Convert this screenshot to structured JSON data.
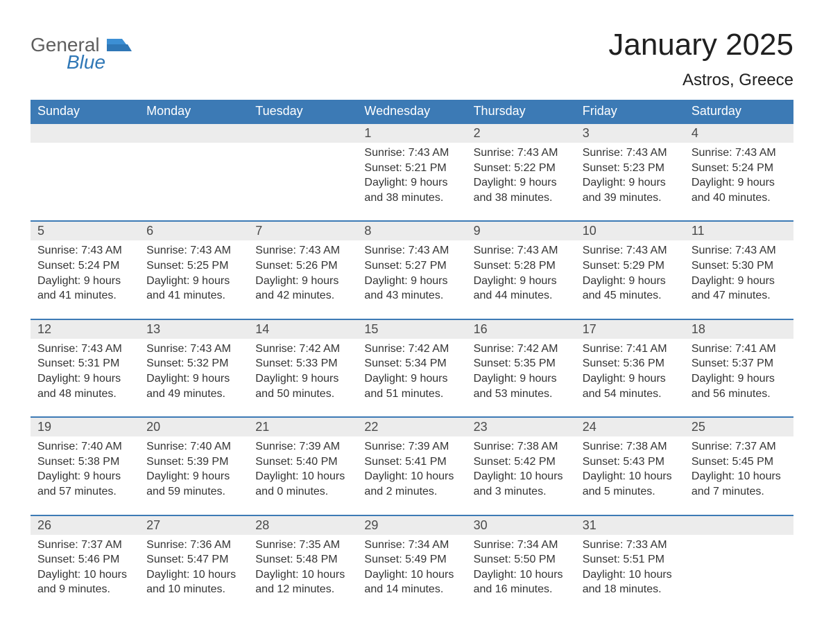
{
  "logo": {
    "general": "General",
    "blue": "Blue"
  },
  "title": "January 2025",
  "location": "Astros, Greece",
  "colors": {
    "header_bg": "#3c7ab5",
    "header_text": "#ffffff",
    "daynum_bg": "#ececec",
    "daynum_text": "#4a4a4a",
    "body_text": "#333333",
    "row_border": "#3c7ab5",
    "logo_gray": "#5e5e5e",
    "logo_blue": "#2f77b6",
    "page_bg": "#ffffff"
  },
  "day_names": [
    "Sunday",
    "Monday",
    "Tuesday",
    "Wednesday",
    "Thursday",
    "Friday",
    "Saturday"
  ],
  "weeks": [
    [
      {
        "num": "",
        "sunrise": "",
        "sunset": "",
        "daylight": ""
      },
      {
        "num": "",
        "sunrise": "",
        "sunset": "",
        "daylight": ""
      },
      {
        "num": "",
        "sunrise": "",
        "sunset": "",
        "daylight": ""
      },
      {
        "num": "1",
        "sunrise": "Sunrise: 7:43 AM",
        "sunset": "Sunset: 5:21 PM",
        "daylight": "Daylight: 9 hours and 38 minutes."
      },
      {
        "num": "2",
        "sunrise": "Sunrise: 7:43 AM",
        "sunset": "Sunset: 5:22 PM",
        "daylight": "Daylight: 9 hours and 38 minutes."
      },
      {
        "num": "3",
        "sunrise": "Sunrise: 7:43 AM",
        "sunset": "Sunset: 5:23 PM",
        "daylight": "Daylight: 9 hours and 39 minutes."
      },
      {
        "num": "4",
        "sunrise": "Sunrise: 7:43 AM",
        "sunset": "Sunset: 5:24 PM",
        "daylight": "Daylight: 9 hours and 40 minutes."
      }
    ],
    [
      {
        "num": "5",
        "sunrise": "Sunrise: 7:43 AM",
        "sunset": "Sunset: 5:24 PM",
        "daylight": "Daylight: 9 hours and 41 minutes."
      },
      {
        "num": "6",
        "sunrise": "Sunrise: 7:43 AM",
        "sunset": "Sunset: 5:25 PM",
        "daylight": "Daylight: 9 hours and 41 minutes."
      },
      {
        "num": "7",
        "sunrise": "Sunrise: 7:43 AM",
        "sunset": "Sunset: 5:26 PM",
        "daylight": "Daylight: 9 hours and 42 minutes."
      },
      {
        "num": "8",
        "sunrise": "Sunrise: 7:43 AM",
        "sunset": "Sunset: 5:27 PM",
        "daylight": "Daylight: 9 hours and 43 minutes."
      },
      {
        "num": "9",
        "sunrise": "Sunrise: 7:43 AM",
        "sunset": "Sunset: 5:28 PM",
        "daylight": "Daylight: 9 hours and 44 minutes."
      },
      {
        "num": "10",
        "sunrise": "Sunrise: 7:43 AM",
        "sunset": "Sunset: 5:29 PM",
        "daylight": "Daylight: 9 hours and 45 minutes."
      },
      {
        "num": "11",
        "sunrise": "Sunrise: 7:43 AM",
        "sunset": "Sunset: 5:30 PM",
        "daylight": "Daylight: 9 hours and 47 minutes."
      }
    ],
    [
      {
        "num": "12",
        "sunrise": "Sunrise: 7:43 AM",
        "sunset": "Sunset: 5:31 PM",
        "daylight": "Daylight: 9 hours and 48 minutes."
      },
      {
        "num": "13",
        "sunrise": "Sunrise: 7:43 AM",
        "sunset": "Sunset: 5:32 PM",
        "daylight": "Daylight: 9 hours and 49 minutes."
      },
      {
        "num": "14",
        "sunrise": "Sunrise: 7:42 AM",
        "sunset": "Sunset: 5:33 PM",
        "daylight": "Daylight: 9 hours and 50 minutes."
      },
      {
        "num": "15",
        "sunrise": "Sunrise: 7:42 AM",
        "sunset": "Sunset: 5:34 PM",
        "daylight": "Daylight: 9 hours and 51 minutes."
      },
      {
        "num": "16",
        "sunrise": "Sunrise: 7:42 AM",
        "sunset": "Sunset: 5:35 PM",
        "daylight": "Daylight: 9 hours and 53 minutes."
      },
      {
        "num": "17",
        "sunrise": "Sunrise: 7:41 AM",
        "sunset": "Sunset: 5:36 PM",
        "daylight": "Daylight: 9 hours and 54 minutes."
      },
      {
        "num": "18",
        "sunrise": "Sunrise: 7:41 AM",
        "sunset": "Sunset: 5:37 PM",
        "daylight": "Daylight: 9 hours and 56 minutes."
      }
    ],
    [
      {
        "num": "19",
        "sunrise": "Sunrise: 7:40 AM",
        "sunset": "Sunset: 5:38 PM",
        "daylight": "Daylight: 9 hours and 57 minutes."
      },
      {
        "num": "20",
        "sunrise": "Sunrise: 7:40 AM",
        "sunset": "Sunset: 5:39 PM",
        "daylight": "Daylight: 9 hours and 59 minutes."
      },
      {
        "num": "21",
        "sunrise": "Sunrise: 7:39 AM",
        "sunset": "Sunset: 5:40 PM",
        "daylight": "Daylight: 10 hours and 0 minutes."
      },
      {
        "num": "22",
        "sunrise": "Sunrise: 7:39 AM",
        "sunset": "Sunset: 5:41 PM",
        "daylight": "Daylight: 10 hours and 2 minutes."
      },
      {
        "num": "23",
        "sunrise": "Sunrise: 7:38 AM",
        "sunset": "Sunset: 5:42 PM",
        "daylight": "Daylight: 10 hours and 3 minutes."
      },
      {
        "num": "24",
        "sunrise": "Sunrise: 7:38 AM",
        "sunset": "Sunset: 5:43 PM",
        "daylight": "Daylight: 10 hours and 5 minutes."
      },
      {
        "num": "25",
        "sunrise": "Sunrise: 7:37 AM",
        "sunset": "Sunset: 5:45 PM",
        "daylight": "Daylight: 10 hours and 7 minutes."
      }
    ],
    [
      {
        "num": "26",
        "sunrise": "Sunrise: 7:37 AM",
        "sunset": "Sunset: 5:46 PM",
        "daylight": "Daylight: 10 hours and 9 minutes."
      },
      {
        "num": "27",
        "sunrise": "Sunrise: 7:36 AM",
        "sunset": "Sunset: 5:47 PM",
        "daylight": "Daylight: 10 hours and 10 minutes."
      },
      {
        "num": "28",
        "sunrise": "Sunrise: 7:35 AM",
        "sunset": "Sunset: 5:48 PM",
        "daylight": "Daylight: 10 hours and 12 minutes."
      },
      {
        "num": "29",
        "sunrise": "Sunrise: 7:34 AM",
        "sunset": "Sunset: 5:49 PM",
        "daylight": "Daylight: 10 hours and 14 minutes."
      },
      {
        "num": "30",
        "sunrise": "Sunrise: 7:34 AM",
        "sunset": "Sunset: 5:50 PM",
        "daylight": "Daylight: 10 hours and 16 minutes."
      },
      {
        "num": "31",
        "sunrise": "Sunrise: 7:33 AM",
        "sunset": "Sunset: 5:51 PM",
        "daylight": "Daylight: 10 hours and 18 minutes."
      },
      {
        "num": "",
        "sunrise": "",
        "sunset": "",
        "daylight": ""
      }
    ]
  ]
}
